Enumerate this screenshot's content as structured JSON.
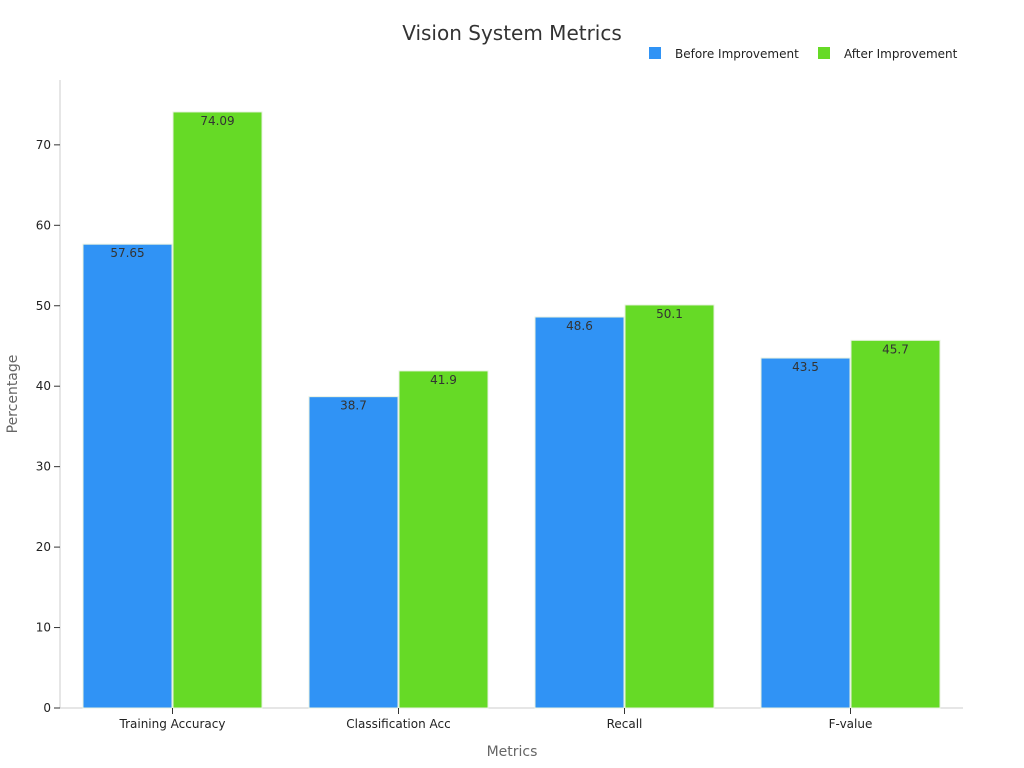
{
  "chart_data": {
    "type": "bar",
    "title": "Vision System Metrics",
    "xlabel": "Metrics",
    "ylabel": "Percentage",
    "categories": [
      "Training Accuracy",
      "Classification Acc",
      "Recall",
      "F-value"
    ],
    "series": [
      {
        "name": "Before Improvement",
        "color": "#3093f5",
        "values": [
          57.65,
          38.7,
          48.6,
          43.5
        ],
        "labels": [
          "57.65",
          "38.7",
          "48.6",
          "43.5"
        ]
      },
      {
        "name": "After Improvement",
        "color": "#66da26",
        "values": [
          74.09,
          41.9,
          50.1,
          45.7
        ],
        "labels": [
          "74.09",
          "41.9",
          "50.1",
          "45.7"
        ]
      }
    ],
    "ylim": [
      0,
      78
    ],
    "yticks": [
      0,
      10,
      20,
      30,
      40,
      50,
      60,
      70
    ],
    "grid": false,
    "legend_position": "top-right"
  }
}
